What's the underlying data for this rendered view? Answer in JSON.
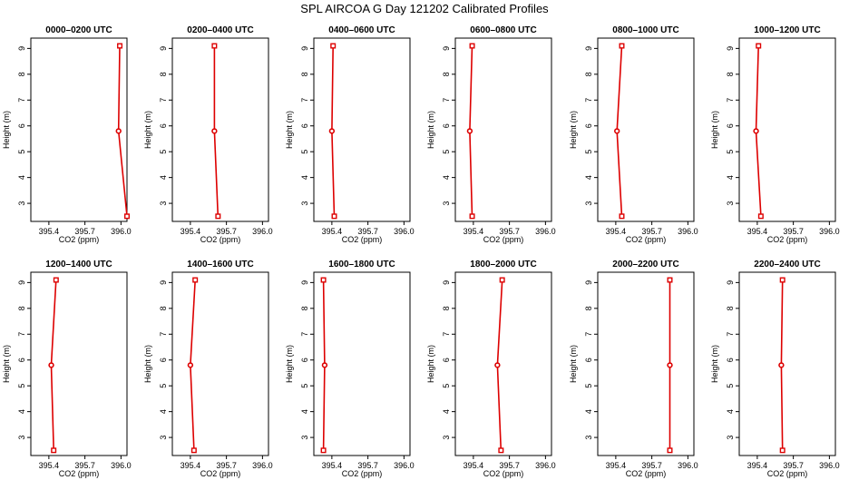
{
  "figure_title": "SPL AIRCOA G  Day 121202  Calibrated Profiles",
  "chart_data": {
    "type": "line",
    "xlabel": "CO2 (ppm)",
    "ylabel": "Height (m)",
    "xlim": [
      395.25,
      396.05
    ],
    "ylim": [
      2.3,
      9.4
    ],
    "x_ticks": [
      395.4,
      395.7,
      396.0
    ],
    "x_tick_labels": [
      "395.4",
      "395.7",
      "396.0"
    ],
    "y_ticks": [
      3,
      4,
      5,
      6,
      7,
      8,
      9
    ],
    "y_tick_labels": [
      "3",
      "4",
      "5",
      "6",
      "7",
      "8",
      "9"
    ],
    "grid": false,
    "panels": [
      {
        "title": "0000–0200 UTC",
        "points": [
          {
            "x": 396.05,
            "y": 2.5
          },
          {
            "x": 395.98,
            "y": 5.8
          },
          {
            "x": 395.99,
            "y": 9.1
          }
        ]
      },
      {
        "title": "0200–0400 UTC",
        "points": [
          {
            "x": 395.63,
            "y": 2.5
          },
          {
            "x": 395.6,
            "y": 5.8
          },
          {
            "x": 395.6,
            "y": 9.1
          }
        ]
      },
      {
        "title": "0400–0600 UTC",
        "points": [
          {
            "x": 395.42,
            "y": 2.5
          },
          {
            "x": 395.4,
            "y": 5.8
          },
          {
            "x": 395.41,
            "y": 9.1
          }
        ]
      },
      {
        "title": "0600–0800 UTC",
        "points": [
          {
            "x": 395.39,
            "y": 2.5
          },
          {
            "x": 395.37,
            "y": 5.8
          },
          {
            "x": 395.39,
            "y": 9.1
          }
        ]
      },
      {
        "title": "0800–1000 UTC",
        "points": [
          {
            "x": 395.45,
            "y": 2.5
          },
          {
            "x": 395.41,
            "y": 5.8
          },
          {
            "x": 395.45,
            "y": 9.1
          }
        ]
      },
      {
        "title": "1000–1200 UTC",
        "points": [
          {
            "x": 395.43,
            "y": 2.5
          },
          {
            "x": 395.39,
            "y": 5.8
          },
          {
            "x": 395.41,
            "y": 9.1
          }
        ]
      },
      {
        "title": "1200–1400 UTC",
        "points": [
          {
            "x": 395.44,
            "y": 2.5
          },
          {
            "x": 395.42,
            "y": 5.8
          },
          {
            "x": 395.46,
            "y": 9.1
          }
        ]
      },
      {
        "title": "1400–1600 UTC",
        "points": [
          {
            "x": 395.43,
            "y": 2.5
          },
          {
            "x": 395.4,
            "y": 5.8
          },
          {
            "x": 395.44,
            "y": 9.1
          }
        ]
      },
      {
        "title": "1600–1800 UTC",
        "points": [
          {
            "x": 395.33,
            "y": 2.5
          },
          {
            "x": 395.34,
            "y": 5.8
          },
          {
            "x": 395.33,
            "y": 9.1
          }
        ]
      },
      {
        "title": "1800–2000 UTC",
        "points": [
          {
            "x": 395.63,
            "y": 2.5
          },
          {
            "x": 395.6,
            "y": 5.8
          },
          {
            "x": 395.64,
            "y": 9.1
          }
        ]
      },
      {
        "title": "2000–2200 UTC",
        "points": [
          {
            "x": 395.85,
            "y": 2.5
          },
          {
            "x": 395.85,
            "y": 5.8
          },
          {
            "x": 395.85,
            "y": 9.1
          }
        ]
      },
      {
        "title": "2200–2400 UTC",
        "points": [
          {
            "x": 395.61,
            "y": 2.5
          },
          {
            "x": 395.6,
            "y": 5.8
          },
          {
            "x": 395.61,
            "y": 9.1
          }
        ]
      }
    ],
    "line_color": "#dd0000"
  }
}
